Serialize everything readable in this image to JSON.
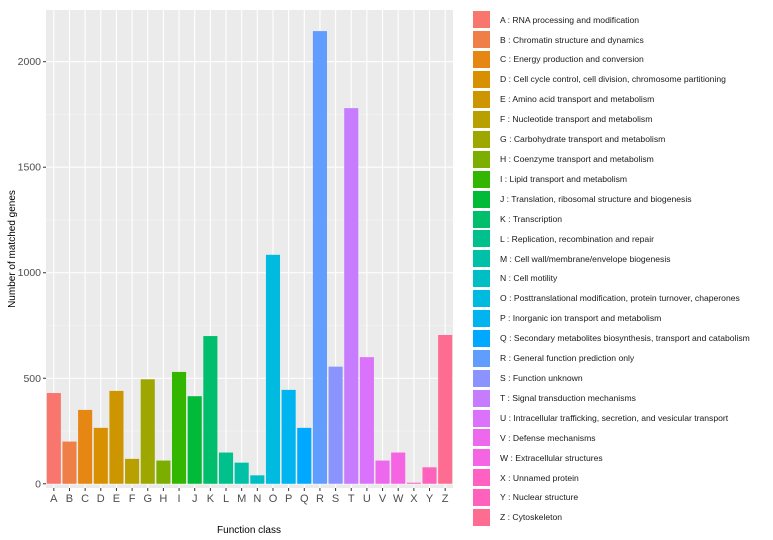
{
  "chart_data": {
    "type": "bar",
    "xlabel": "Function class",
    "ylabel": "Number of matched genes",
    "ylim": [
      -20,
      2245
    ],
    "yticks": [
      0,
      500,
      1000,
      1500,
      2000
    ],
    "grid": true,
    "legend_position": "right",
    "categories": [
      "A",
      "B",
      "C",
      "D",
      "E",
      "F",
      "G",
      "H",
      "I",
      "J",
      "K",
      "L",
      "M",
      "N",
      "O",
      "P",
      "Q",
      "R",
      "S",
      "T",
      "U",
      "V",
      "W",
      "X",
      "Y",
      "Z"
    ],
    "values": [
      430,
      200,
      350,
      265,
      440,
      118,
      495,
      110,
      530,
      415,
      700,
      148,
      100,
      40,
      1085,
      445,
      265,
      2145,
      555,
      1780,
      600,
      110,
      148,
      5,
      78,
      705
    ],
    "colors": [
      "#F8766D",
      "#EF7F47",
      "#E68613",
      "#D89000",
      "#CD9600",
      "#B7A000",
      "#9DA700",
      "#7CAE00",
      "#32B600",
      "#00BA38",
      "#00BE6C",
      "#00C08B",
      "#00C1A7",
      "#00BFC4",
      "#00BAE0",
      "#00B4EF",
      "#00A9FF",
      "#619CFF",
      "#8B93FF",
      "#C77CFF",
      "#DB72FB",
      "#ED68ED",
      "#F564E3",
      "#FF61C3",
      "#FF62BC",
      "#FF6C91"
    ],
    "legend": [
      "A : RNA processing and modification",
      "B : Chromatin structure and dynamics",
      "C : Energy production and conversion",
      "D : Cell cycle control, cell division, chromosome partitioning",
      "E : Amino acid transport and metabolism",
      "F : Nucleotide transport and metabolism",
      "G : Carbohydrate transport and metabolism",
      "H : Coenzyme transport and metabolism",
      "I : Lipid transport and metabolism",
      "J : Translation, ribosomal structure and biogenesis",
      "K : Transcription",
      "L : Replication, recombination and repair",
      "M : Cell wall/membrane/envelope biogenesis",
      "N : Cell motility",
      "O : Posttranslational modification, protein turnover, chaperones",
      "P : Inorganic ion transport and metabolism",
      "Q : Secondary metabolites biosynthesis, transport and catabolism",
      "R : General function prediction only",
      "S : Function unknown",
      "T : Signal transduction mechanisms",
      "U : Intracellular trafficking, secretion, and vesicular transport",
      "V : Defense mechanisms",
      "W : Extracellular structures",
      "X : Unnamed protein",
      "Y : Nuclear structure",
      "Z : Cytoskeleton"
    ]
  }
}
